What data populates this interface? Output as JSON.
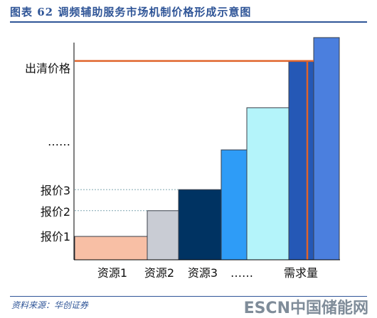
{
  "header": {
    "title": "图表 62   调频辅助服务市场机制价格形成示意图"
  },
  "footer": {
    "source": "资料来源：华创证券",
    "watermark": "ESCN中国储能网"
  },
  "chart_data": {
    "type": "bar",
    "categories": [
      "资源1",
      "资源2",
      "资源3",
      "……",
      "需求量"
    ],
    "y_tick_labels": [
      "报价1",
      "报价2",
      "报价3",
      "……",
      "出清价格"
    ],
    "bars": [
      {
        "value": 1.0,
        "color": "#f8bfa5"
      },
      {
        "value": 2.1,
        "color": "#c9ccd4"
      },
      {
        "value": 3.0,
        "color": "#003362"
      },
      {
        "value": 4.7,
        "color": "#2e9cf7"
      },
      {
        "value": 6.5,
        "color": "#b4f4fa"
      },
      {
        "value": 8.5,
        "color": "#2558b6"
      },
      {
        "value": 9.5,
        "color": "#4b7fde"
      }
    ],
    "reference_lines": {
      "clearing_price": 8.5,
      "quote2": 2.1,
      "quote3": 3.0
    },
    "colors": {
      "clearing_line": "#e0632a",
      "axis": "#000000",
      "dotted": "#7fa6b0"
    },
    "ylim": [
      0,
      10.5
    ]
  }
}
